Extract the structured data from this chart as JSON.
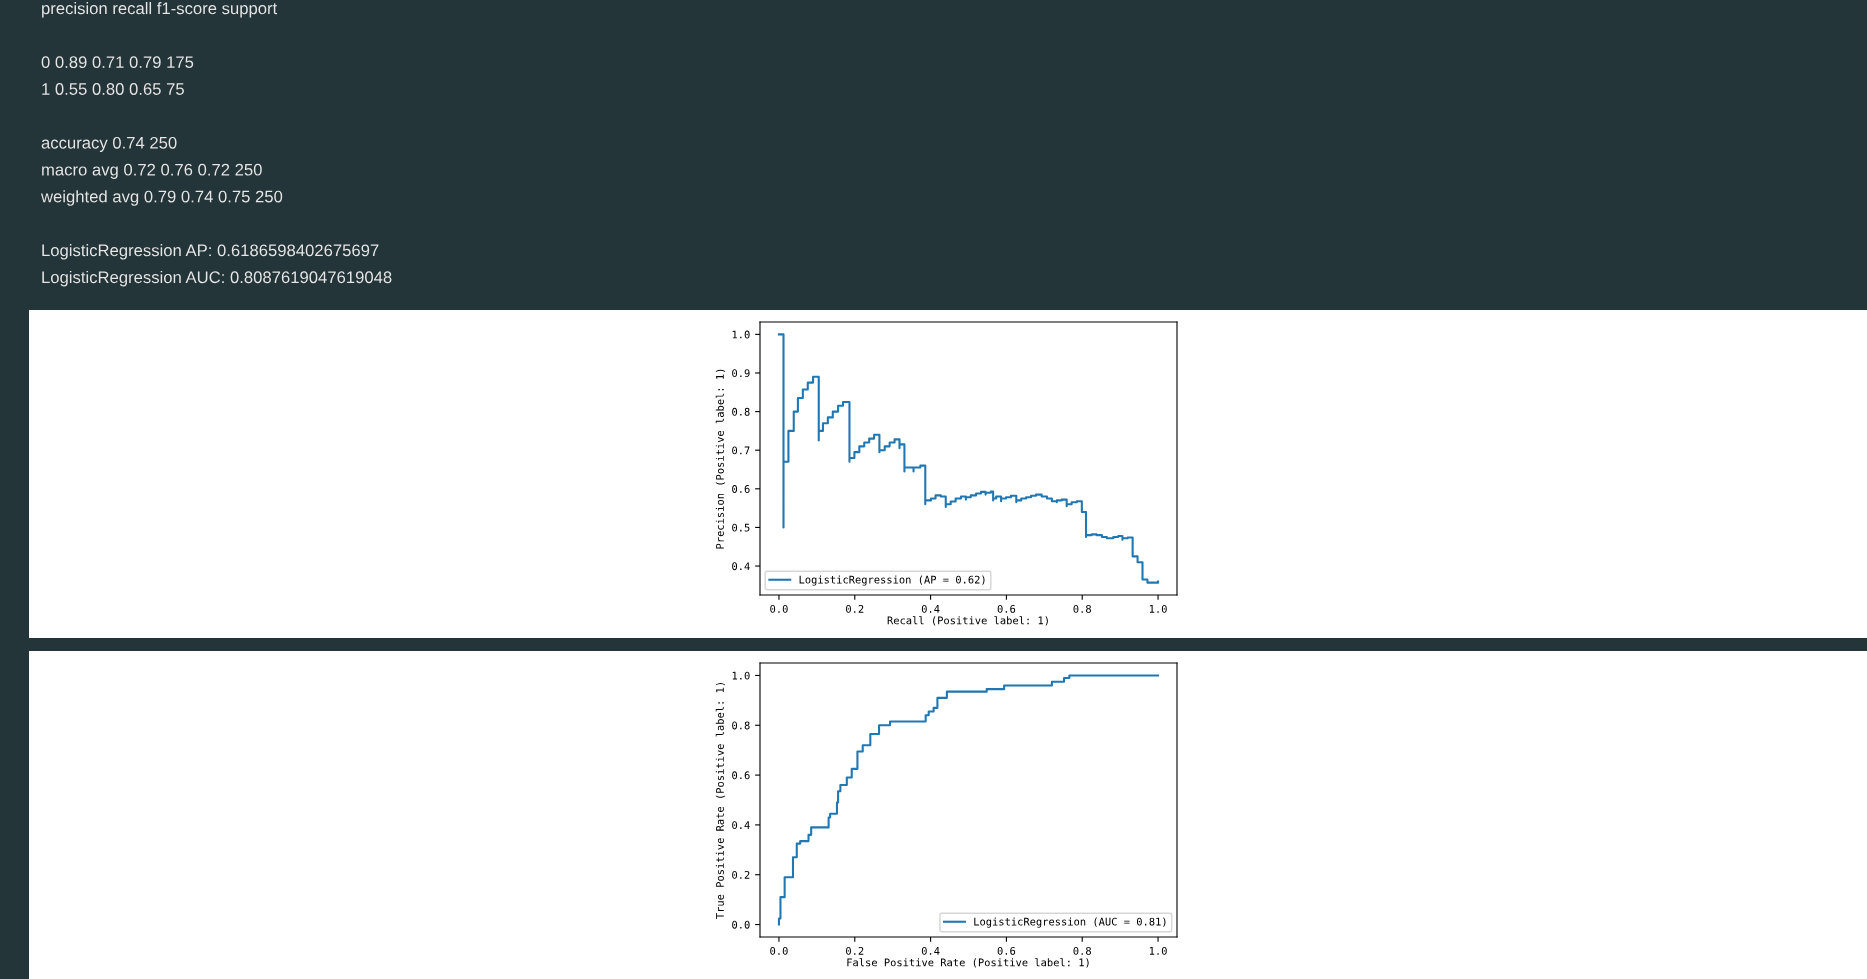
{
  "chart_data": [
    {
      "type": "other",
      "annotations": [
        "precision recall f1-score support\n\n0 0.89 0.71 0.79 175\n1 0.55 0.80 0.65 75\n\naccuracy 0.74 250\nmacro avg 0.72 0.76 0.72 250\nweighted avg 0.79 0.74 0.75 250\n\nLogisticRegression AP: 0.6186598402675697\nLogisticRegression AUC: 0.8087619047619048"
      ]
    },
    {
      "type": "step",
      "xlabel": "Recall (Positive label: 1)",
      "ylabel": "Precision (Positive label: 1)",
      "legend": "bottom left",
      "grid": false,
      "xlim": [
        -0.05,
        1.05
      ],
      "ylim": [
        0.325,
        1.032
      ],
      "xticks": [
        {
          "value": 0,
          "label": "0.0"
        },
        {
          "value": 0.2,
          "label": "0.2"
        },
        {
          "value": 0.4,
          "label": "0.4"
        },
        {
          "value": 0.6,
          "label": "0.6"
        },
        {
          "value": 0.8,
          "label": "0.8"
        },
        {
          "value": 1,
          "label": "1.0"
        }
      ],
      "yticks": [
        {
          "value": 0.4,
          "label": "0.4"
        },
        {
          "value": 0.5,
          "label": "0.5"
        },
        {
          "value": 0.6,
          "label": "0.6"
        },
        {
          "value": 0.7,
          "label": "0.7"
        },
        {
          "value": 0.8,
          "label": "0.8"
        },
        {
          "value": 0.9,
          "label": "0.9"
        },
        {
          "value": 1,
          "label": "1.0"
        }
      ],
      "series": [
        {
          "name": "LogisticRegression (AP = 0.62)",
          "color": "#1f77b4",
          "x": [
            0,
            0.012,
            0.012,
            0.025,
            0.039,
            0.05,
            0.063,
            0.076,
            0.09,
            0.105,
            0.105,
            0.116,
            0.129,
            0.142,
            0.156,
            0.169,
            0.186,
            0.186,
            0.199,
            0.212,
            0.225,
            0.238,
            0.251,
            0.265,
            0.265,
            0.279,
            0.292,
            0.305,
            0.318,
            0.318,
            0.331,
            0.331,
            0.355,
            0.355,
            0.373,
            0.386,
            0.386,
            0.401,
            0.413,
            0.427,
            0.44,
            0.44,
            0.453,
            0.466,
            0.48,
            0.493,
            0.493,
            0.506,
            0.52,
            0.533,
            0.545,
            0.545,
            0.559,
            0.565,
            0.565,
            0.573,
            0.586,
            0.586,
            0.599,
            0.612,
            0.626,
            0.626,
            0.639,
            0.652,
            0.665,
            0.678,
            0.693,
            0.707,
            0.72,
            0.733,
            0.733,
            0.746,
            0.759,
            0.759,
            0.772,
            0.786,
            0.799,
            0.81,
            0.81,
            0.825,
            0.838,
            0.852,
            0.865,
            0.882,
            0.895,
            0.906,
            0.906,
            0.92,
            0.933,
            0.946,
            0.959,
            0.972,
            1.0
          ],
          "values": [
            1.0,
            0.5,
            0.67,
            0.75,
            0.8,
            0.835,
            0.857,
            0.875,
            0.89,
            0.725,
            0.75,
            0.77,
            0.785,
            0.8,
            0.815,
            0.825,
            0.67,
            0.68,
            0.695,
            0.71,
            0.72,
            0.73,
            0.74,
            0.695,
            0.7,
            0.71,
            0.72,
            0.728,
            0.705,
            0.715,
            0.645,
            0.655,
            0.645,
            0.655,
            0.66,
            0.56,
            0.57,
            0.575,
            0.583,
            0.58,
            0.553,
            0.56,
            0.567,
            0.575,
            0.58,
            0.572,
            0.578,
            0.583,
            0.588,
            0.592,
            0.585,
            0.59,
            0.593,
            0.57,
            0.575,
            0.58,
            0.568,
            0.575,
            0.578,
            0.582,
            0.565,
            0.57,
            0.575,
            0.578,
            0.582,
            0.585,
            0.58,
            0.575,
            0.568,
            0.565,
            0.57,
            0.572,
            0.555,
            0.56,
            0.565,
            0.568,
            0.54,
            0.475,
            0.48,
            0.482,
            0.48,
            0.475,
            0.472,
            0.475,
            0.478,
            0.468,
            0.472,
            0.474,
            0.425,
            0.41,
            0.365,
            0.357,
            0.36
          ]
        }
      ]
    },
    {
      "type": "step",
      "xlabel": "False Positive Rate (Positive label: 1)",
      "ylabel": "True Positive Rate (Positive label: 1)",
      "legend": "bottom right",
      "grid": false,
      "xlim": [
        -0.05,
        1.05
      ],
      "ylim": [
        -0.05,
        1.05
      ],
      "xticks": [
        {
          "value": 0,
          "label": "0.0"
        },
        {
          "value": 0.2,
          "label": "0.2"
        },
        {
          "value": 0.4,
          "label": "0.4"
        },
        {
          "value": 0.6,
          "label": "0.6"
        },
        {
          "value": 0.8,
          "label": "0.8"
        },
        {
          "value": 1,
          "label": "1.0"
        }
      ],
      "yticks": [
        {
          "value": 0,
          "label": "0.0"
        },
        {
          "value": 0.2,
          "label": "0.2"
        },
        {
          "value": 0.4,
          "label": "0.4"
        },
        {
          "value": 0.6,
          "label": "0.6"
        },
        {
          "value": 0.8,
          "label": "0.8"
        },
        {
          "value": 1,
          "label": "1.0"
        }
      ],
      "series": [
        {
          "name": "LogisticRegression (AUC = 0.81)",
          "color": "#1f77b4",
          "x": [
            0,
            0,
            0.004,
            0.015,
            0.037,
            0.047,
            0.056,
            0.078,
            0.085,
            0.131,
            0.135,
            0.153,
            0.156,
            0.162,
            0.179,
            0.192,
            0.207,
            0.221,
            0.241,
            0.264,
            0.293,
            0.387,
            0.395,
            0.408,
            0.418,
            0.443,
            0.548,
            0.594,
            0.72,
            0.752,
            0.766,
            1.0
          ],
          "values": [
            0,
            0.024,
            0.11,
            0.19,
            0.27,
            0.325,
            0.335,
            0.36,
            0.39,
            0.43,
            0.445,
            0.49,
            0.535,
            0.56,
            0.59,
            0.625,
            0.695,
            0.72,
            0.765,
            0.8,
            0.815,
            0.84,
            0.855,
            0.87,
            0.91,
            0.935,
            0.945,
            0.96,
            0.975,
            0.99,
            1.0,
            1.0
          ]
        }
      ]
    }
  ]
}
